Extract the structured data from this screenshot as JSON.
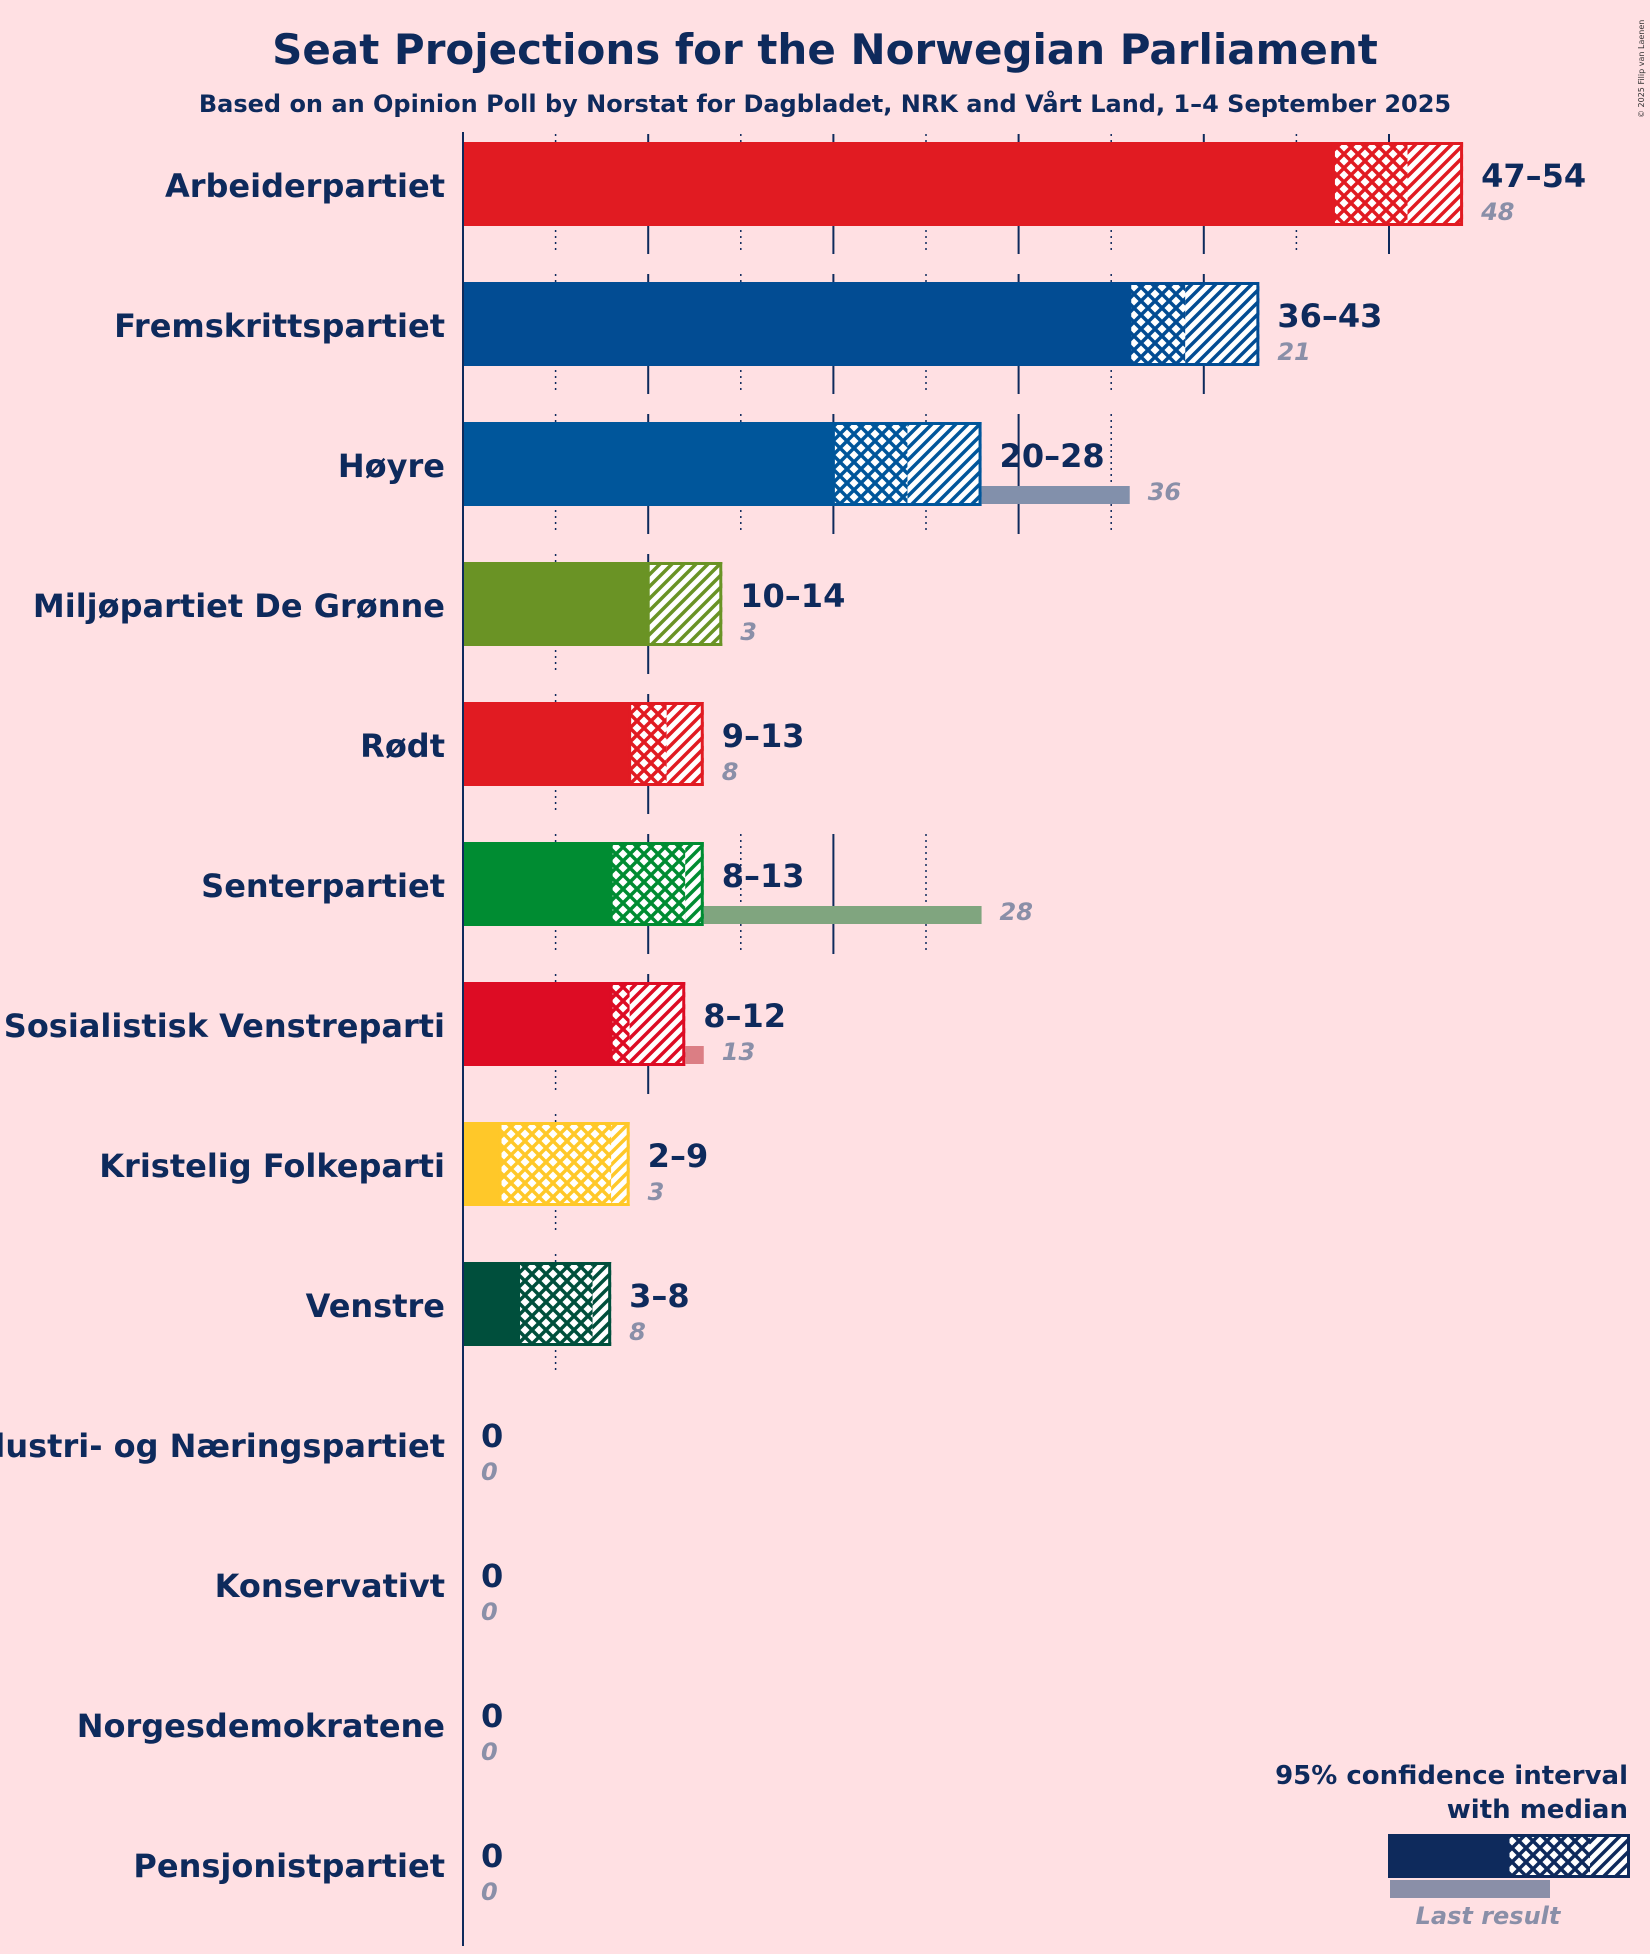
{
  "chart_data": {
    "type": "bar",
    "title": "Seat Projections for the Norwegian Parliament",
    "subtitle": "Based on an Opinion Poll by Norstat for Dagbladet, NRK and Vårt Land, 1–4 September 2025",
    "copyright": "© 2025 Filip van Laenen",
    "x_range": [
      0,
      54
    ],
    "grid_major_every": 10,
    "grid_minor_every": 5,
    "series": [
      {
        "party": "Arbeiderpartiet",
        "low": 47,
        "median": 51,
        "high": 54,
        "last": 48,
        "range_label": "47–54",
        "last_label": "48",
        "color": "#E11B22",
        "last_color": "#DB7E84",
        "text_color": "#FFFFFF"
      },
      {
        "party": "Fremskrittspartiet",
        "low": 36,
        "median": 39,
        "high": 43,
        "last": 21,
        "range_label": "36–43",
        "last_label": "21",
        "color": "#024C93",
        "last_color": "#8290AB",
        "text_color": "#FFFFFF"
      },
      {
        "party": "Høyre",
        "low": 20,
        "median": 24,
        "high": 28,
        "last": 36,
        "range_label": "20–28",
        "last_label": "36",
        "color": "#00569B",
        "last_color": "#8290AB",
        "text_color": "#FFFFFF"
      },
      {
        "party": "Miljøpartiet De Grønne",
        "low": 10,
        "median": 10,
        "high": 14,
        "last": 3,
        "range_label": "10–14",
        "last_label": "3",
        "color": "#6A9325",
        "last_color": "#A8AF80",
        "text_color": "#FFFFFF"
      },
      {
        "party": "Rødt",
        "low": 9,
        "median": 11,
        "high": 13,
        "last": 8,
        "range_label": "9–13",
        "last_label": "8",
        "color": "#E11B22",
        "last_color": "#DB7E84",
        "text_color": "#FFFFFF"
      },
      {
        "party": "Senterpartiet",
        "low": 8,
        "median": 12,
        "high": 13,
        "last": 28,
        "range_label": "8–13",
        "last_label": "28",
        "color": "#008C32",
        "last_color": "#80A57F",
        "text_color": "#FFFFFF"
      },
      {
        "party": "Sosialistisk Venstreparti",
        "low": 8,
        "median": 9,
        "high": 12,
        "last": 13,
        "range_label": "8–12",
        "last_label": "13",
        "color": "#DD0C24",
        "last_color": "#DB7E84",
        "text_color": "#FFFFFF"
      },
      {
        "party": "Kristelig Folkeparti",
        "low": 2,
        "median": 8,
        "high": 9,
        "last": 3,
        "range_label": "2–9",
        "last_label": "3",
        "color": "#FFC829",
        "last_color": "#FFD287",
        "text_color": "#FFFFFF"
      },
      {
        "party": "Venstre",
        "low": 3,
        "median": 7,
        "high": 8,
        "last": 8,
        "range_label": "3–8",
        "last_label": "8",
        "color": "#004F3C",
        "last_color": "#80908A",
        "text_color": "#FFFFFF"
      },
      {
        "party": "Industri- og Næringspartiet",
        "low": 0,
        "median": 0,
        "high": 0,
        "last": 0,
        "range_label": "0",
        "last_label": "0",
        "color": "#1B3A6B",
        "last_color": "#8290AB",
        "text_color": "#FFFFFF"
      },
      {
        "party": "Konservativt",
        "low": 0,
        "median": 0,
        "high": 0,
        "last": 0,
        "range_label": "0",
        "last_label": "0",
        "color": "#1B3A6B",
        "last_color": "#8290AB",
        "text_color": "#FFFFFF"
      },
      {
        "party": "Norgesdemokratene",
        "low": 0,
        "median": 0,
        "high": 0,
        "last": 0,
        "range_label": "0",
        "last_label": "0",
        "color": "#1B3A6B",
        "last_color": "#8290AB",
        "text_color": "#FFFFFF"
      },
      {
        "party": "Pensjonistpartiet",
        "low": 0,
        "median": 0,
        "high": 0,
        "last": 0,
        "range_label": "0",
        "last_label": "0",
        "color": "#1B3A6B",
        "last_color": "#8290AB",
        "text_color": "#FFFFFF"
      }
    ],
    "legend": {
      "line1": "95% confidence interval",
      "line2": "with median",
      "last_result": "Last result",
      "color": "#0E2A5C",
      "last_color": "#8A8FA8"
    }
  }
}
